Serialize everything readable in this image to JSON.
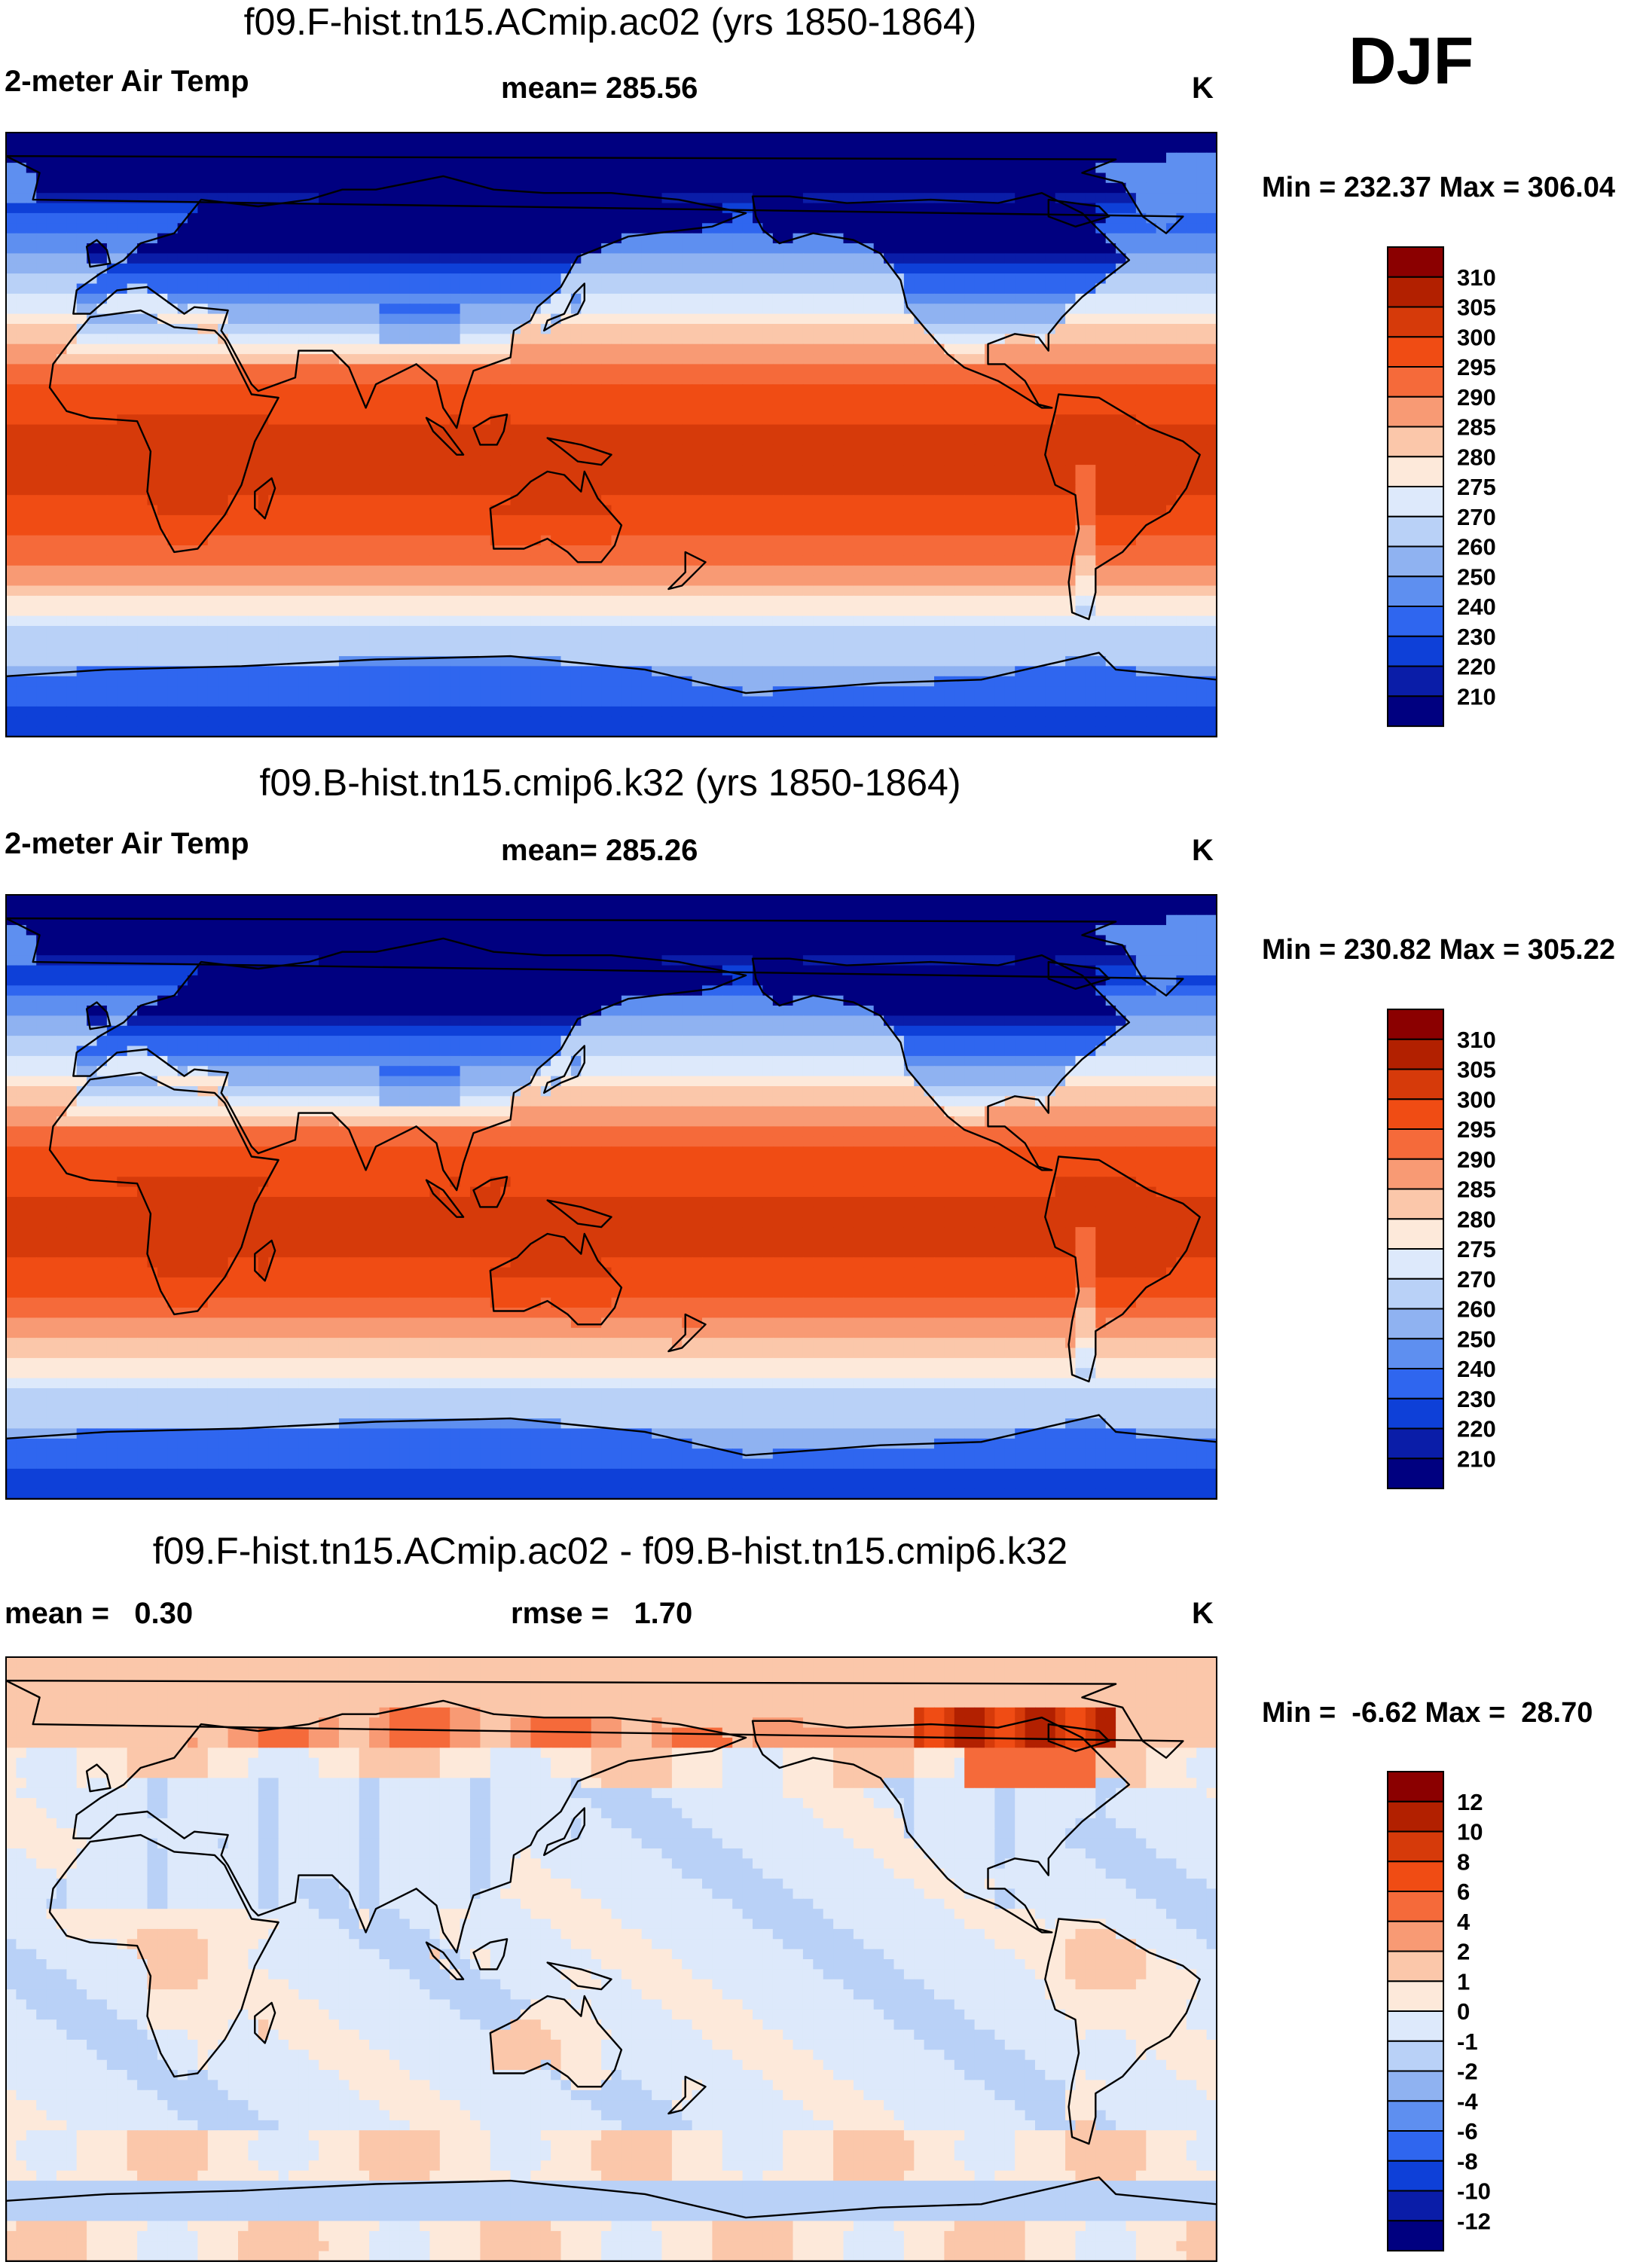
{
  "season": "DJF",
  "chart_data": [
    {
      "type": "heatmap",
      "title": "f09.F-hist.tn15.ACmip.ac02 (yrs 1850-1864)",
      "variable": "2-meter Air Temp",
      "stat": "mean= 285.56",
      "units": "K",
      "minmax": "Min = 232.37 Max = 306.04",
      "levels": [
        "310",
        "305",
        "300",
        "295",
        "290",
        "285",
        "280",
        "275",
        "270",
        "260",
        "250",
        "240",
        "230",
        "220",
        "210"
      ],
      "colors": [
        "#8b0000",
        "#b22000",
        "#d63a0a",
        "#f04c14",
        "#f56a3a",
        "#f89a74",
        "#fbc7aa",
        "#fde9da",
        "#dde9fb",
        "#b9d1f7",
        "#8fb2f1",
        "#5e8ff0",
        "#2f66ef",
        "#0e40d8",
        "#0a1da8",
        "#000080"
      ],
      "pattern": "absolute",
      "mean": 285.56,
      "min": 232.37,
      "max": 306.04
    },
    {
      "type": "heatmap",
      "title": "f09.B-hist.tn15.cmip6.k32 (yrs 1850-1864)",
      "variable": "2-meter Air Temp",
      "stat": "mean= 285.26",
      "units": "K",
      "minmax": "Min = 230.82 Max = 305.22",
      "levels": [
        "310",
        "305",
        "300",
        "295",
        "290",
        "285",
        "280",
        "275",
        "270",
        "260",
        "250",
        "240",
        "230",
        "220",
        "210"
      ],
      "colors": [
        "#8b0000",
        "#b22000",
        "#d63a0a",
        "#f04c14",
        "#f56a3a",
        "#f89a74",
        "#fbc7aa",
        "#fde9da",
        "#dde9fb",
        "#b9d1f7",
        "#8fb2f1",
        "#5e8ff0",
        "#2f66ef",
        "#0e40d8",
        "#0a1da8",
        "#000080"
      ],
      "pattern": "absolute",
      "mean": 285.26,
      "min": 230.82,
      "max": 305.22
    },
    {
      "type": "heatmap",
      "title": "f09.F-hist.tn15.ACmip.ac02 - f09.B-hist.tn15.cmip6.k32",
      "stat_left": "mean =   0.30",
      "stat": "rmse =   1.70",
      "units": "K",
      "minmax": "Min =  -6.62 Max =  28.70",
      "levels": [
        "12",
        "10",
        "8",
        "6",
        "4",
        "2",
        "1",
        "0",
        "-1",
        "-2",
        "-4",
        "-6",
        "-8",
        "-10",
        "-12"
      ],
      "colors": [
        "#8b0000",
        "#b22000",
        "#d63a0a",
        "#f04c14",
        "#f56a3a",
        "#f89a74",
        "#fbc7aa",
        "#fde9da",
        "#dde9fb",
        "#b9d1f7",
        "#8fb2f1",
        "#5e8ff0",
        "#2f66ef",
        "#0e40d8",
        "#0a1da8",
        "#000080"
      ],
      "pattern": "difference",
      "mean": 0.3,
      "rmse": 1.7,
      "min": -6.62,
      "max": 28.7
    }
  ]
}
